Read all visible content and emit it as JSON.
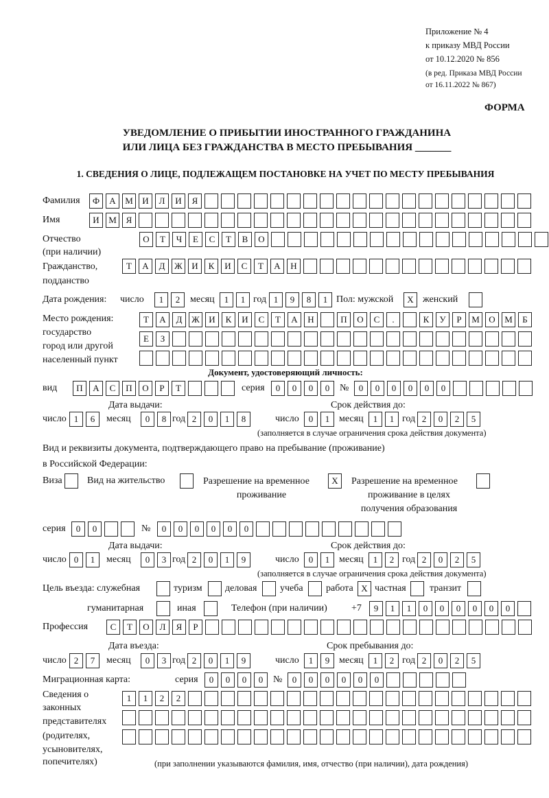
{
  "header": {
    "appendix": "Приложение № 4",
    "order": "к приказу МВД России",
    "order_date": "от 10.12.2020 № 856",
    "edition1": "(в ред. Приказа МВД России",
    "edition2": "от 16.11.2022 № 867)",
    "form": "ФОРМА",
    "title1": "УВЕДОМЛЕНИЕ О ПРИБЫТИИ ИНОСТРАННОГО ГРАЖДАНИНА",
    "title2": "ИЛИ ЛИЦА БЕЗ ГРАЖДАНСТВА В МЕСТО ПРЕБЫВАНИЯ _______",
    "section1": "1. СВЕДЕНИЯ О ЛИЦЕ, ПОДЛЕЖАЩЕМ ПОСТАНОВКЕ НА УЧЕТ ПО МЕСТУ ПРЕБЫВАНИЯ"
  },
  "labels": {
    "surname": "Фамилия",
    "name": "Имя",
    "patronymic": "Отчество",
    "patronymic2": "(при наличии)",
    "citizenship": "Гражданство,",
    "citizenship2": "подданство",
    "birth_date": "Дата рождения:",
    "day": "число",
    "month": "месяц",
    "year": "год",
    "sex": "Пол: мужской",
    "female": "женский",
    "birth_place": "Место рождения:",
    "birth_place2": "государство",
    "birth_place3": "город или другой",
    "birth_place4": "населенный пункт",
    "id_doc": "Документ, удостоверяющий личность:",
    "kind": "вид",
    "series": "серия",
    "number": "№",
    "issue_date": "Дата выдачи:",
    "valid_until": "Срок действия до:",
    "note_validity": "(заполняется в случае ограничения срока действия документа)",
    "stay_doc1": "Вид и реквизиты документа, подтверждающего право на пребывание (проживание)",
    "stay_doc2": "в Российской Федерации:",
    "visa": "Виза",
    "residence": "Вид на жительство",
    "temp_permit1": "Разрешение на временное",
    "temp_permit2": "проживание",
    "edu_permit1": "Разрешение на временное",
    "edu_permit2": "проживание в целях",
    "edu_permit3": "получения образования",
    "purpose": "Цель въезда: служебная",
    "tourism": "туризм",
    "business": "деловая",
    "study": "учеба",
    "work": "работа",
    "private": "частная",
    "transit": "транзит",
    "humanitarian": "гуманитарная",
    "other": "иная",
    "phone": "Телефон (при наличии)",
    "phone_prefix": "+7",
    "profession": "Профессия",
    "entry_date": "Дата въезда:",
    "stay_until": "Срок пребывания до:",
    "migration_card": "Миграционная карта:",
    "reps1": "Сведения о",
    "reps2": "законных",
    "reps3": "представителях",
    "reps4": "(родителях,",
    "reps5": "усыновителях,",
    "reps6": "попечителях)",
    "reps_note": "(при заполнении указываются фамилия, имя, отчество (при наличии), дата рождения)"
  },
  "person": {
    "surname": [
      "Ф",
      "А",
      "М",
      "И",
      "Л",
      "И",
      "Я",
      "",
      "",
      "",
      "",
      "",
      "",
      "",
      "",
      "",
      "",
      "",
      "",
      "",
      "",
      "",
      "",
      "",
      "",
      "",
      ""
    ],
    "name": [
      "И",
      "М",
      "Я",
      "",
      "",
      "",
      "",
      "",
      "",
      "",
      "",
      "",
      "",
      "",
      "",
      "",
      "",
      "",
      "",
      "",
      "",
      "",
      "",
      "",
      "",
      "",
      ""
    ],
    "patronymic": [
      "О",
      "Т",
      "Ч",
      "Е",
      "С",
      "Т",
      "В",
      "О",
      "",
      "",
      "",
      "",
      "",
      "",
      "",
      "",
      "",
      "",
      "",
      "",
      "",
      "",
      "",
      "",
      ""
    ],
    "citizenship": [
      "Т",
      "А",
      "Д",
      "Ж",
      "И",
      "К",
      "И",
      "С",
      "Т",
      "А",
      "Н",
      "",
      "",
      "",
      "",
      "",
      "",
      "",
      "",
      "",
      "",
      "",
      "",
      "",
      ""
    ],
    "birth_day": [
      "1",
      "2"
    ],
    "birth_month": [
      "1",
      "1"
    ],
    "birth_year": [
      "1",
      "9",
      "8",
      "1"
    ],
    "sex_male": [
      "X"
    ],
    "sex_female": [
      ""
    ],
    "birth_place1": [
      "Т",
      "А",
      "Д",
      "Ж",
      "И",
      "К",
      "И",
      "С",
      "Т",
      "А",
      "Н",
      "",
      "П",
      "О",
      "С",
      ".",
      "",
      "К",
      "У",
      "Р",
      "М",
      "О",
      "М",
      "Б"
    ],
    "birth_place2": [
      "Е",
      "З",
      "",
      "",
      "",
      "",
      "",
      "",
      "",
      "",
      "",
      "",
      "",
      "",
      "",
      "",
      "",
      "",
      "",
      "",
      "",
      "",
      "",
      ""
    ],
    "birth_place3": [
      "",
      "",
      "",
      "",
      "",
      "",
      "",
      "",
      "",
      "",
      "",
      "",
      "",
      "",
      "",
      "",
      "",
      "",
      "",
      "",
      "",
      "",
      "",
      ""
    ]
  },
  "id_document": {
    "kind": [
      "П",
      "А",
      "С",
      "П",
      "О",
      "Р",
      "Т",
      "",
      "",
      ""
    ],
    "series": [
      "0",
      "0",
      "0",
      "0"
    ],
    "number": [
      "0",
      "0",
      "0",
      "0",
      "0",
      "0",
      "",
      "",
      "",
      "",
      ""
    ],
    "issue_day": [
      "1",
      "6"
    ],
    "issue_month": [
      "0",
      "8"
    ],
    "issue_year": [
      "2",
      "0",
      "1",
      "8"
    ],
    "valid_day": [
      "0",
      "1"
    ],
    "valid_month": [
      "1",
      "1"
    ],
    "valid_year": [
      "2",
      "0",
      "2",
      "5"
    ]
  },
  "stay_document": {
    "visa": [
      ""
    ],
    "residence": [
      ""
    ],
    "temp_permit": [
      "X"
    ],
    "edu_permit": [
      ""
    ],
    "series": [
      "0",
      "0",
      "",
      ""
    ],
    "number": [
      "0",
      "0",
      "0",
      "0",
      "0",
      "0",
      "",
      "",
      "",
      "",
      "",
      "",
      "",
      "",
      ""
    ],
    "issue_day": [
      "0",
      "1"
    ],
    "issue_month": [
      "0",
      "3"
    ],
    "issue_year": [
      "2",
      "0",
      "1",
      "9"
    ],
    "valid_day": [
      "0",
      "1"
    ],
    "valid_month": [
      "1",
      "2"
    ],
    "valid_year": [
      "2",
      "0",
      "2",
      "5"
    ]
  },
  "purpose": {
    "official": [
      ""
    ],
    "tourism": [
      ""
    ],
    "business": [
      ""
    ],
    "study": [
      ""
    ],
    "work": [
      "X"
    ],
    "private": [
      ""
    ],
    "transit": [
      ""
    ],
    "humanitarian": [
      ""
    ],
    "other": [
      ""
    ]
  },
  "phone": [
    "9",
    "1",
    "1",
    "0",
    "0",
    "0",
    "0",
    "0",
    "0",
    ""
  ],
  "profession": [
    "С",
    "Т",
    "О",
    "Л",
    "Я",
    "Р",
    "",
    "",
    "",
    "",
    "",
    "",
    "",
    "",
    "",
    "",
    "",
    "",
    "",
    "",
    "",
    "",
    "",
    "",
    "",
    ""
  ],
  "entry": {
    "entry_day": [
      "2",
      "7"
    ],
    "entry_month": [
      "0",
      "3"
    ],
    "entry_year": [
      "2",
      "0",
      "1",
      "9"
    ],
    "stay_day": [
      "1",
      "9"
    ],
    "stay_month": [
      "1",
      "2"
    ],
    "stay_year": [
      "2",
      "0",
      "2",
      "5"
    ]
  },
  "migration_card": {
    "series": [
      "0",
      "0",
      "0",
      "0"
    ],
    "number": [
      "0",
      "0",
      "0",
      "0",
      "0",
      "0",
      "",
      "",
      "",
      "",
      ""
    ]
  },
  "representatives": {
    "row1": [
      "1",
      "1",
      "2",
      "2",
      "",
      "",
      "",
      "",
      "",
      "",
      "",
      "",
      "",
      "",
      "",
      "",
      "",
      "",
      "",
      "",
      "",
      "",
      "",
      "",
      ""
    ],
    "row2": [
      "",
      "",
      "",
      "",
      "",
      "",
      "",
      "",
      "",
      "",
      "",
      "",
      "",
      "",
      "",
      "",
      "",
      "",
      "",
      "",
      "",
      "",
      "",
      "",
      ""
    ],
    "row3": [
      "",
      "",
      "",
      "",
      "",
      "",
      "",
      "",
      "",
      "",
      "",
      "",
      "",
      "",
      "",
      "",
      "",
      "",
      "",
      "",
      "",
      "",
      "",
      "",
      ""
    ]
  }
}
